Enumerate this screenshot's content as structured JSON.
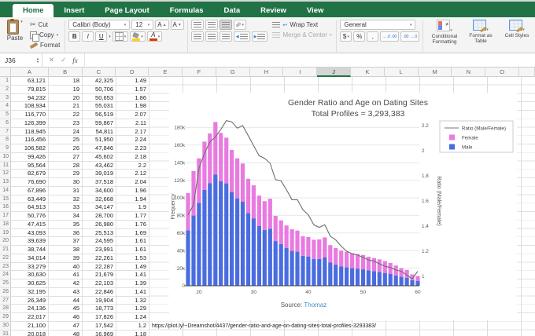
{
  "ribbon": {
    "tabs": [
      {
        "label": "Home",
        "active": true
      },
      {
        "label": "Insert",
        "active": false
      },
      {
        "label": "Page Layout",
        "active": false
      },
      {
        "label": "Formulas",
        "active": false
      },
      {
        "label": "Data",
        "active": false
      },
      {
        "label": "Review",
        "active": false
      },
      {
        "label": "View",
        "active": false
      }
    ],
    "clipboard": {
      "paste": "Paste",
      "cut": "Cut",
      "copy": "Copy",
      "format": "Format"
    },
    "font": {
      "family": "Calibri (Body)",
      "size": "12",
      "grow": "A",
      "shrink": "A",
      "bold": "B",
      "italic": "I",
      "underline": "U"
    },
    "alignment": {
      "wrap_text": "Wrap Text",
      "merge_center": "Merge & Center"
    },
    "number": {
      "format": "General",
      "currency": "$",
      "percent": "%",
      "comma": ",",
      "inc_decimal": "←.0 .00",
      "dec_decimal": ".00 →.0"
    },
    "styles": {
      "conditional": "Conditional Formatting",
      "format_table": "Format as Table",
      "cell_styles": "Cell Styles"
    }
  },
  "formula_bar": {
    "cell_ref": "J36",
    "cancel": "✕",
    "confirm": "✓",
    "fx": "fx",
    "formula": ""
  },
  "sheet": {
    "columns": [
      "A",
      "B",
      "C",
      "D",
      "E",
      "F",
      "G",
      "H",
      "I",
      "J",
      "K",
      "L",
      "M",
      "N",
      "O"
    ],
    "selected_column": "J",
    "url_cell": "https://plot.ly/~Dreamshot/4437/gender-ratio-and-age-on-dating-sites-total-profiles-3293383/",
    "rows": [
      [
        "63,121",
        "18",
        "42,325",
        "1.49"
      ],
      [
        "79,815",
        "19",
        "50,706",
        "1.57"
      ],
      [
        "94,232",
        "20",
        "50,653",
        "1.86"
      ],
      [
        "108,934",
        "21",
        "55,031",
        "1.98"
      ],
      [
        "116,770",
        "22",
        "56,519",
        "2.07"
      ],
      [
        "126,399",
        "23",
        "59,867",
        "2.11"
      ],
      [
        "118,945",
        "24",
        "54,811",
        "2.17"
      ],
      [
        "116,456",
        "25",
        "51,950",
        "2.24"
      ],
      [
        "106,582",
        "26",
        "47,846",
        "2.23"
      ],
      [
        "99,426",
        "27",
        "45,602",
        "2.18"
      ],
      [
        "95,564",
        "28",
        "43,462",
        "2.2"
      ],
      [
        "82,679",
        "29",
        "39,019",
        "2.12"
      ],
      [
        "76,690",
        "30",
        "37,518",
        "2.04"
      ],
      [
        "67,896",
        "31",
        "34,600",
        "1.96"
      ],
      [
        "63,449",
        "32",
        "32,668",
        "1.94"
      ],
      [
        "64,913",
        "33",
        "34,147",
        "1.9"
      ],
      [
        "50,776",
        "34",
        "28,700",
        "1.77"
      ],
      [
        "47,415",
        "35",
        "26,980",
        "1.76"
      ],
      [
        "43,093",
        "36",
        "25,513",
        "1.69"
      ],
      [
        "39,639",
        "37",
        "24,595",
        "1.61"
      ],
      [
        "38,744",
        "38",
        "23,991",
        "1.61"
      ],
      [
        "34,014",
        "39",
        "22,261",
        "1.53"
      ],
      [
        "33,279",
        "40",
        "22,287",
        "1.49"
      ],
      [
        "30,630",
        "41",
        "21,679",
        "1.41"
      ],
      [
        "30,625",
        "42",
        "22,103",
        "1.39"
      ],
      [
        "32,195",
        "43",
        "22,846",
        "1.41"
      ],
      [
        "26,349",
        "44",
        "19,904",
        "1.32"
      ],
      [
        "24,136",
        "45",
        "18,773",
        "1.29"
      ],
      [
        "22,017",
        "46",
        "17,826",
        "1.24"
      ],
      [
        "21,100",
        "47",
        "17,542",
        "1.2"
      ],
      [
        "20,018",
        "48",
        "16,969",
        "1.18"
      ]
    ]
  },
  "chart_data": {
    "type": "bar",
    "stacked": true,
    "title": "Gender Ratio and Age on Dating Sites",
    "subtitle": "Total Profiles = 3,293,383",
    "source_prefix": "Source: ",
    "source_link": "Thomaz",
    "xlabel": "",
    "ylabel": "Frequency",
    "y2label": "Ratio (Male/Female)",
    "ylim": [
      0,
      190000
    ],
    "y2lim": [
      0.95,
      2.28
    ],
    "grid": true,
    "legend_position": "top-right",
    "x": [
      18,
      19,
      20,
      21,
      22,
      23,
      24,
      25,
      26,
      27,
      28,
      29,
      30,
      31,
      32,
      33,
      34,
      35,
      36,
      37,
      38,
      39,
      40,
      41,
      42,
      43,
      44,
      45,
      46,
      47,
      48,
      49,
      50,
      51,
      52,
      53,
      54,
      55,
      56,
      57,
      58,
      59,
      60
    ],
    "xticks": [
      20,
      30,
      40,
      50,
      60
    ],
    "yticks": [
      "0",
      "20k",
      "40k",
      "60k",
      "80k",
      "100k",
      "120k",
      "140k",
      "160k",
      "180k"
    ],
    "y2ticks": [
      "1",
      "1.2",
      "1.4",
      "1.6",
      "1.8",
      "2",
      "2.2"
    ],
    "series": [
      {
        "name": "Male",
        "type": "bar",
        "color": "#4a6ce0",
        "values": [
          63121,
          79815,
          94232,
          108934,
          116770,
          126399,
          118945,
          116456,
          106582,
          99426,
          95564,
          82679,
          76690,
          67896,
          63449,
          64913,
          50776,
          47415,
          43093,
          39639,
          38744,
          34014,
          33279,
          30630,
          30625,
          32195,
          26349,
          24136,
          22017,
          21100,
          20018,
          19421,
          18702,
          17532,
          16613,
          15721,
          14512,
          13438,
          11801,
          10206,
          9068,
          6430,
          5602
        ]
      },
      {
        "name": "Female",
        "type": "bar",
        "color": "#e87ae0",
        "values": [
          42325,
          50706,
          50653,
          55031,
          56519,
          59867,
          54811,
          51950,
          47846,
          45602,
          43462,
          39019,
          37518,
          34600,
          32668,
          34147,
          28700,
          26980,
          25513,
          24595,
          23991,
          22261,
          22287,
          21679,
          22103,
          22846,
          19904,
          18773,
          17826,
          17542,
          16969,
          16599,
          16263,
          15516,
          14833,
          14292,
          13437,
          12559,
          11239,
          9814,
          8978,
          6561,
          5387
        ]
      },
      {
        "name": "Ratio (Male/Female)",
        "type": "line",
        "color": "#6e6e6e",
        "values": [
          1.49,
          1.57,
          1.86,
          1.98,
          2.07,
          2.11,
          2.17,
          2.24,
          2.23,
          2.18,
          2.2,
          2.12,
          2.04,
          1.96,
          1.94,
          1.9,
          1.77,
          1.76,
          1.69,
          1.61,
          1.61,
          1.53,
          1.49,
          1.41,
          1.39,
          1.41,
          1.32,
          1.29,
          1.24,
          1.2,
          1.18,
          1.17,
          1.15,
          1.13,
          1.12,
          1.1,
          1.08,
          1.07,
          1.05,
          1.04,
          1.01,
          0.98,
          1.04
        ]
      }
    ]
  }
}
